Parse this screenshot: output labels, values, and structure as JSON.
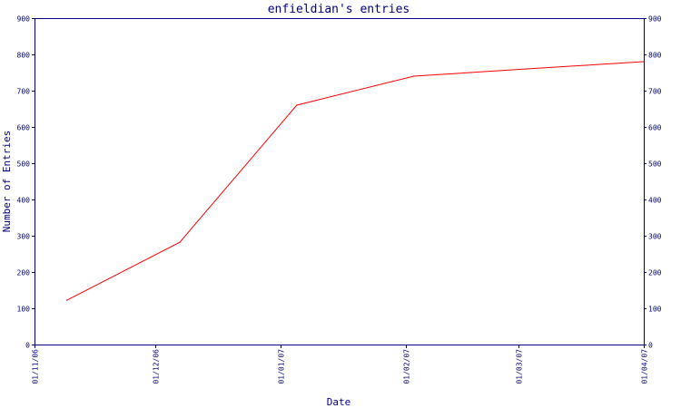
{
  "chart_data": {
    "type": "line",
    "title": "enfieldian's entries",
    "xlabel": "Date",
    "ylabel": "Number of Entries",
    "ylim": [
      0,
      900
    ],
    "y_ticks": [
      "0",
      "100",
      "200",
      "300",
      "400",
      "500",
      "600",
      "700",
      "800",
      "900"
    ],
    "x_ticks": [
      {
        "label": "01/11/06",
        "date": "2006-11-01"
      },
      {
        "label": "01/12/06",
        "date": "2006-12-01"
      },
      {
        "label": "01/01/07",
        "date": "2007-01-01"
      },
      {
        "label": "01/02/07",
        "date": "2007-02-01"
      },
      {
        "label": "01/03/07",
        "date": "2007-03-01"
      },
      {
        "label": "01/04/07",
        "date": "2007-04-01"
      }
    ],
    "xlim": [
      "2006-11-01",
      "2007-04-01"
    ],
    "grid": false,
    "right_axis": true,
    "series": [
      {
        "color": "#ff0000",
        "points": [
          {
            "x": "2006-11-09",
            "y": 122
          },
          {
            "x": "2006-12-07",
            "y": 282
          },
          {
            "x": "2007-01-05",
            "y": 660
          },
          {
            "x": "2007-02-03",
            "y": 740
          },
          {
            "x": "2007-03-03",
            "y": 760
          },
          {
            "x": "2007-04-01",
            "y": 780
          }
        ]
      }
    ],
    "colors": {
      "axis": "#000080",
      "background": "#ffffff"
    }
  }
}
